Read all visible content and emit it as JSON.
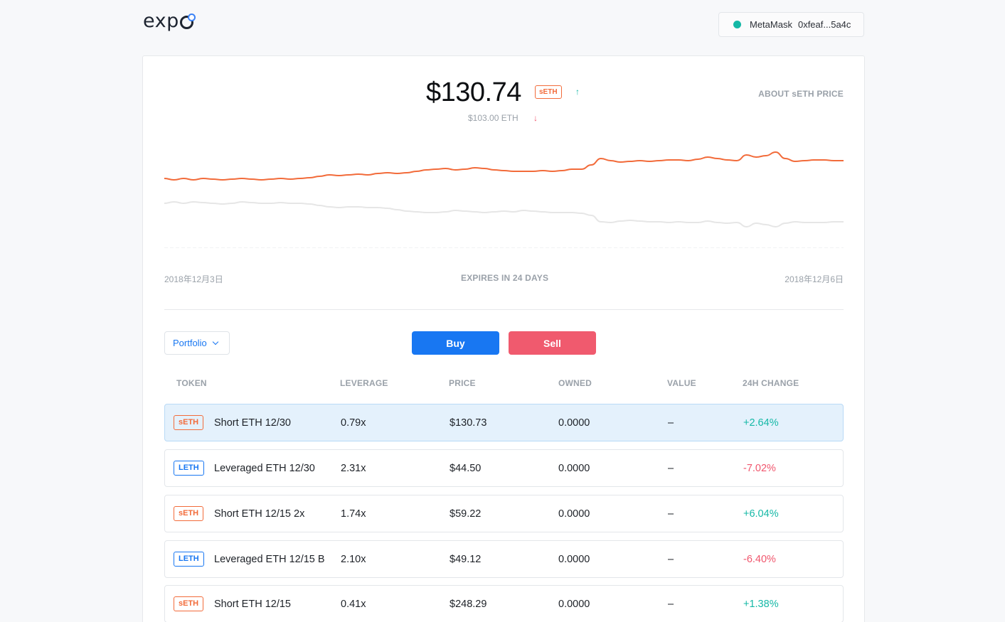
{
  "header": {
    "logo": "exp",
    "wallet": {
      "name": "MetaMask",
      "address": "0xfeaf...5a4c",
      "status_color": "#14b8a6"
    }
  },
  "price_panel": {
    "price": "$130.74",
    "token": "sETH",
    "price_eth": "$103.00 ETH",
    "up_arrow": "↑",
    "down_arrow": "↓",
    "about_link": "ABOUT sETH PRICE",
    "date_start": "2018年12月3日",
    "date_end": "2018年12月6日",
    "expires": "EXPIRES IN 24 DAYS"
  },
  "chart_data": {
    "type": "line",
    "series": [
      {
        "color": "#f26b3a",
        "values": [
          250,
          252,
          250,
          252,
          250,
          251,
          252,
          251,
          250,
          251,
          252,
          251,
          250,
          251,
          250,
          249,
          247,
          245,
          246,
          245,
          244,
          245,
          243,
          242,
          243,
          242,
          240,
          238,
          237,
          236,
          238,
          237,
          235,
          236,
          238,
          239,
          240,
          240,
          240,
          239,
          240,
          239,
          237,
          237,
          231,
          222,
          225,
          227,
          226,
          225,
          226,
          225,
          224,
          224,
          225,
          223,
          220,
          222,
          224,
          225,
          217,
          220,
          218,
          213,
          222,
          226,
          225,
          224,
          224,
          225,
          225
        ]
      },
      {
        "color": "#e6e6e6",
        "values": [
          285,
          283,
          285,
          283,
          284,
          285,
          286,
          285,
          283,
          284,
          285,
          285,
          284,
          285,
          285,
          286,
          288,
          290,
          291,
          290,
          290,
          291,
          291,
          292,
          294,
          296,
          297,
          298,
          298,
          297,
          295,
          296,
          297,
          298,
          297,
          296,
          297,
          295,
          296,
          297,
          298,
          298,
          298,
          299,
          302,
          311,
          312,
          310,
          309,
          310,
          311,
          311,
          312,
          311,
          312,
          312,
          310,
          312,
          313,
          312,
          318,
          313,
          315,
          318,
          313,
          311,
          312,
          312,
          312,
          311,
          311
        ]
      }
    ],
    "grid": false,
    "legend": "none"
  },
  "controls": {
    "view_select": "Portfolio",
    "buy_label": "Buy",
    "sell_label": "Sell"
  },
  "table": {
    "headers": [
      "TOKEN",
      "LEVERAGE",
      "PRICE",
      "OWNED",
      "VALUE",
      "24H CHANGE"
    ],
    "rows": [
      {
        "badge": "sETH",
        "kind": "short",
        "name": "Short ETH 12/30",
        "leverage": "0.79x",
        "price": "$130.73",
        "owned": "0.0000",
        "value": "–",
        "change": "+2.64%",
        "dir": "pos",
        "selected": true
      },
      {
        "badge": "LETH",
        "kind": "long",
        "name": "Leveraged ETH 12/30",
        "leverage": "2.31x",
        "price": "$44.50",
        "owned": "0.0000",
        "value": "–",
        "change": "-7.02%",
        "dir": "neg",
        "selected": false
      },
      {
        "badge": "sETH",
        "kind": "short",
        "name": "Short ETH 12/15 2x",
        "leverage": "1.74x",
        "price": "$59.22",
        "owned": "0.0000",
        "value": "–",
        "change": "+6.04%",
        "dir": "pos",
        "selected": false
      },
      {
        "badge": "LETH",
        "kind": "long",
        "name": "Leveraged ETH 12/15 B",
        "leverage": "2.10x",
        "price": "$49.12",
        "owned": "0.0000",
        "value": "–",
        "change": "-6.40%",
        "dir": "neg",
        "selected": false
      },
      {
        "badge": "sETH",
        "kind": "short",
        "name": "Short ETH 12/15",
        "leverage": "0.41x",
        "price": "$248.29",
        "owned": "0.0000",
        "value": "–",
        "change": "+1.38%",
        "dir": "pos",
        "selected": false
      }
    ]
  }
}
